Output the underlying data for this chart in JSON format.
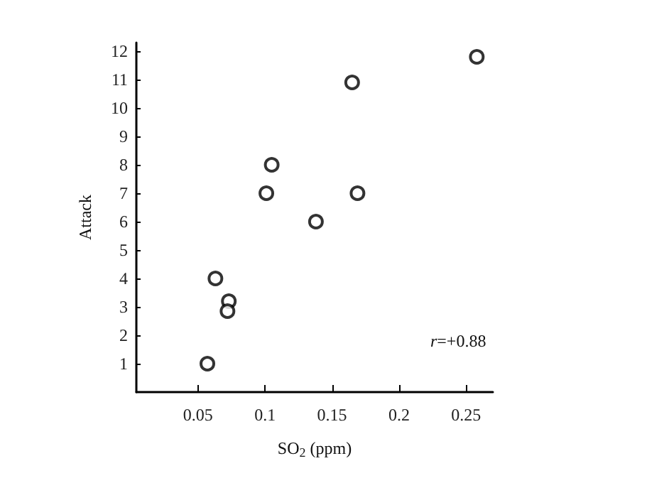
{
  "chart_data": {
    "type": "scatter",
    "xlabel": "SO$_{2}$ (ppm)",
    "ylabel": "Attack",
    "x": [
      0.057,
      0.063,
      0.073,
      0.072,
      0.101,
      0.105,
      0.138,
      0.165,
      0.169,
      0.258
    ],
    "values": [
      1,
      4,
      3.2,
      2.85,
      7,
      8,
      6,
      10.9,
      7,
      11.8
    ],
    "color": "#000000",
    "marker": "circle",
    "grid": false,
    "xlim": [
      0.004,
      0.27
    ],
    "ylim": [
      0,
      12.3
    ],
    "xticks": [
      0.05,
      0.1,
      0.15,
      0.2,
      0.25
    ],
    "yticks": [
      1,
      2,
      3,
      4,
      5,
      6,
      7,
      8,
      9,
      10,
      11,
      12
    ],
    "annotations": [
      "r=+0.88"
    ]
  }
}
